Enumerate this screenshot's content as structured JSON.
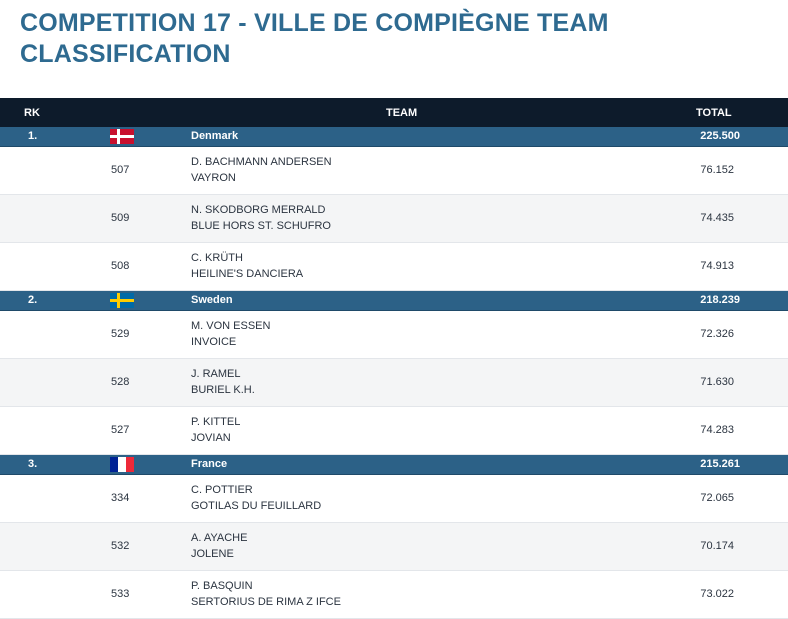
{
  "title": "COMPETITION 17 - VILLE DE COMPIÈGNE TEAM CLASSIFICATION",
  "header": {
    "rk": "RK",
    "team": "TEAM",
    "total": "TOTAL"
  },
  "teams": [
    {
      "rank": "1.",
      "flag": "denmark-flag",
      "name": "Denmark",
      "total": "225.500",
      "riders": [
        {
          "number": "507",
          "rider": "D. BACHMANN ANDERSEN",
          "horse": "VAYRON",
          "score": "76.152"
        },
        {
          "number": "509",
          "rider": "N. SKODBORG MERRALD",
          "horse": "BLUE HORS ST. SCHUFRO",
          "score": "74.435"
        },
        {
          "number": "508",
          "rider": "C. KRÜTH",
          "horse": "HEILINE'S DANCIERA",
          "score": "74.913"
        }
      ]
    },
    {
      "rank": "2.",
      "flag": "sweden-flag",
      "name": "Sweden",
      "total": "218.239",
      "riders": [
        {
          "number": "529",
          "rider": "M. VON ESSEN",
          "horse": "INVOICE",
          "score": "72.326"
        },
        {
          "number": "528",
          "rider": "J. RAMEL",
          "horse": "BURIEL K.H.",
          "score": "71.630"
        },
        {
          "number": "527",
          "rider": "P. KITTEL",
          "horse": "JOVIAN",
          "score": "74.283"
        }
      ]
    },
    {
      "rank": "3.",
      "flag": "france-flag",
      "name": "France",
      "total": "215.261",
      "riders": [
        {
          "number": "334",
          "rider": "C. POTTIER",
          "horse": "GOTILAS DU FEUILLARD",
          "score": "72.065"
        },
        {
          "number": "532",
          "rider": "A. AYACHE",
          "horse": "JOLENE",
          "score": "70.174"
        },
        {
          "number": "533",
          "rider": "P. BASQUIN",
          "horse": "SERTORIUS DE RIMA Z IFCE",
          "score": "73.022"
        }
      ]
    }
  ]
}
